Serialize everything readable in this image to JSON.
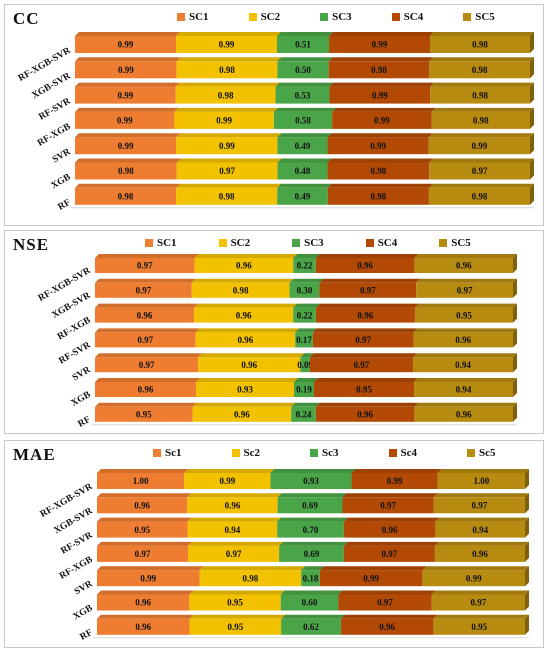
{
  "colors": {
    "sc1": "#ee7d31",
    "sc2": "#f2c100",
    "sc3": "#4aa548",
    "sc4": "#b24a05",
    "sc5": "#b68b10"
  },
  "chart_data": [
    {
      "type": "bar",
      "stacked": true,
      "orientation": "horizontal",
      "title": "CC",
      "categories": [
        "RF-XGB-SVR",
        "XGB-SVR",
        "RF-SVR",
        "RF-XGB",
        "SVR",
        "XGB",
        "RF"
      ],
      "series": [
        {
          "name": "SC1",
          "values": [
            0.99,
            0.99,
            0.99,
            0.99,
            0.99,
            0.98,
            0.98
          ]
        },
        {
          "name": "SC2",
          "values": [
            0.99,
            0.98,
            0.98,
            0.99,
            0.99,
            0.97,
            0.98
          ]
        },
        {
          "name": "SC3",
          "values": [
            0.51,
            0.5,
            0.53,
            0.58,
            0.49,
            0.48,
            0.49
          ]
        },
        {
          "name": "SC4",
          "values": [
            0.99,
            0.98,
            0.99,
            0.99,
            0.99,
            0.98,
            0.98
          ]
        },
        {
          "name": "SC5",
          "values": [
            0.98,
            0.98,
            0.98,
            0.98,
            0.99,
            0.97,
            0.98
          ]
        }
      ],
      "legend_position": "top"
    },
    {
      "type": "bar",
      "stacked": true,
      "orientation": "horizontal",
      "title": "NSE",
      "categories": [
        "RF-XGB-SVR",
        "XGB-SVR",
        "RF-XGB",
        "RF-SVR",
        "SVR",
        "XGB",
        "RF"
      ],
      "series": [
        {
          "name": "SC1",
          "values": [
            0.97,
            0.97,
            0.96,
            0.97,
            0.97,
            0.96,
            0.95
          ]
        },
        {
          "name": "SC2",
          "values": [
            0.96,
            0.98,
            0.96,
            0.96,
            0.96,
            0.93,
            0.96
          ]
        },
        {
          "name": "SC3",
          "values": [
            0.22,
            0.3,
            0.22,
            0.17,
            0.09,
            0.19,
            0.24
          ]
        },
        {
          "name": "SC4",
          "values": [
            0.96,
            0.97,
            0.96,
            0.97,
            0.97,
            0.95,
            0.96
          ]
        },
        {
          "name": "SC5",
          "values": [
            0.96,
            0.97,
            0.95,
            0.96,
            0.94,
            0.94,
            0.96
          ]
        }
      ],
      "legend_position": "top"
    },
    {
      "type": "bar",
      "stacked": true,
      "orientation": "horizontal",
      "title": "MAE",
      "categories": [
        "RF-XGB-SVR",
        "XGB-SVR",
        "RF-SVR",
        "RF-XGB",
        "SVR",
        "XGB",
        "RF"
      ],
      "series": [
        {
          "name": "Sc1",
          "values": [
            1.0,
            0.96,
            0.95,
            0.97,
            0.99,
            0.96,
            0.96
          ]
        },
        {
          "name": "Sc2",
          "values": [
            0.99,
            0.96,
            0.94,
            0.97,
            0.98,
            0.95,
            0.95
          ]
        },
        {
          "name": "Sc3",
          "values": [
            0.93,
            0.69,
            0.7,
            0.69,
            0.18,
            0.6,
            0.62
          ]
        },
        {
          "name": "Sc4",
          "values": [
            0.99,
            0.97,
            0.96,
            0.97,
            0.99,
            0.97,
            0.96
          ]
        },
        {
          "name": "Sc5",
          "values": [
            1.0,
            0.97,
            0.94,
            0.96,
            0.99,
            0.97,
            0.95
          ]
        }
      ],
      "legend_position": "top"
    }
  ]
}
